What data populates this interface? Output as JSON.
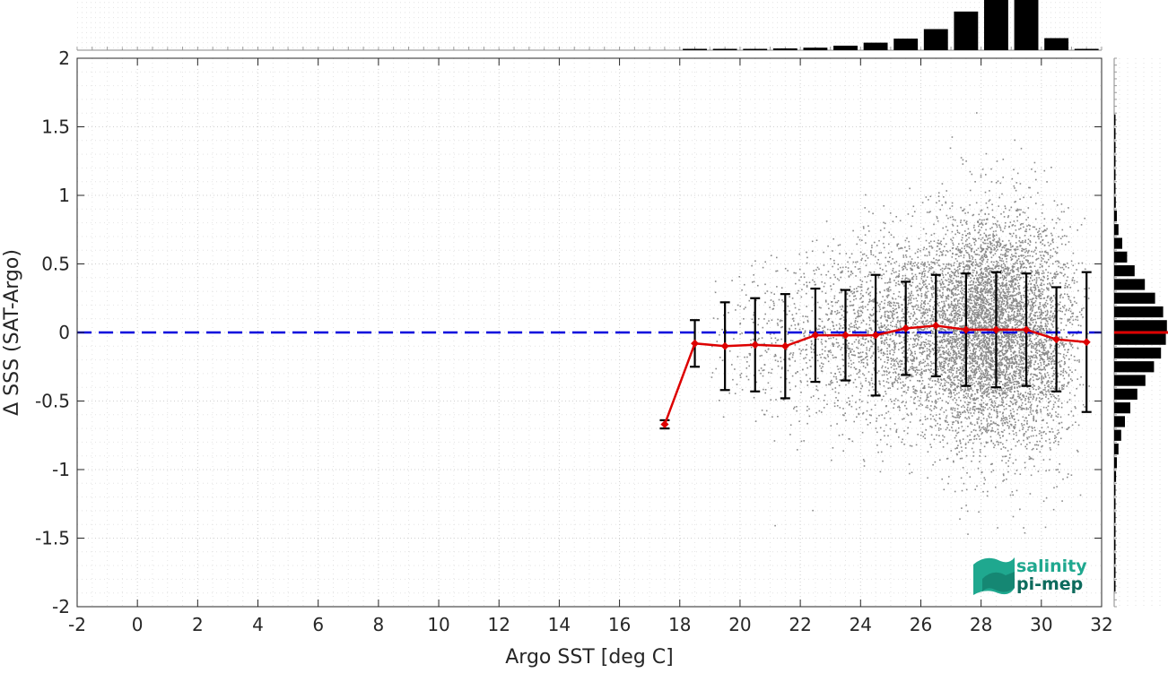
{
  "chart_data": {
    "type": "scatter",
    "title": "",
    "xlabel": "Argo SST [deg C]",
    "ylabel": "Δ SSS (SAT-Argo)",
    "xlim": [
      -2,
      32
    ],
    "ylim": [
      -2,
      2
    ],
    "x_ticks": [
      -2,
      0,
      2,
      4,
      6,
      8,
      10,
      12,
      14,
      16,
      18,
      20,
      22,
      24,
      26,
      28,
      30,
      32
    ],
    "y_ticks": [
      -2,
      -1.5,
      -1,
      -0.5,
      0,
      0.5,
      1,
      1.5,
      2
    ],
    "y_tick_labels": [
      "-2",
      "-1.5",
      "-1",
      "-0.5",
      "0",
      "0.5",
      "1",
      "1.5",
      "2"
    ],
    "grid": true,
    "zero_line": {
      "y": 0,
      "color": "#0000dd",
      "style": "dashed"
    },
    "scatter_color": "#8a8a8a",
    "mean_series": {
      "color": "#dd0000",
      "x": [
        17.5,
        18.5,
        19.5,
        20.5,
        21.5,
        22.5,
        23.5,
        24.5,
        25.5,
        26.5,
        27.5,
        28.5,
        29.5,
        30.5,
        31.5
      ],
      "mean": [
        -0.67,
        -0.08,
        -0.1,
        -0.09,
        -0.1,
        -0.02,
        -0.02,
        -0.02,
        0.03,
        0.05,
        0.02,
        0.02,
        0.02,
        -0.05,
        -0.07
      ],
      "std": [
        0.03,
        0.17,
        0.32,
        0.34,
        0.38,
        0.34,
        0.33,
        0.44,
        0.34,
        0.37,
        0.41,
        0.42,
        0.41,
        0.38,
        0.51
      ]
    },
    "scatter_clusters": [
      {
        "cx": 20.5,
        "cy": -0.05,
        "sx": 1.0,
        "sy": 0.32,
        "n": 140
      },
      {
        "cx": 23.0,
        "cy": -0.02,
        "sx": 1.2,
        "sy": 0.33,
        "n": 600
      },
      {
        "cx": 25.5,
        "cy": 0.02,
        "sx": 1.2,
        "sy": 0.36,
        "n": 1500
      },
      {
        "cx": 28.3,
        "cy": 0.02,
        "sx": 1.1,
        "sy": 0.42,
        "n": 5200
      },
      {
        "cx": 30.2,
        "cy": -0.05,
        "sx": 0.6,
        "sy": 0.4,
        "n": 700
      }
    ],
    "top_histogram": {
      "bin_centers": [
        17.5,
        18.5,
        19.5,
        20.5,
        21.5,
        22.5,
        23.5,
        24.5,
        25.5,
        26.5,
        27.5,
        28.5,
        29.5,
        30.5,
        31.5
      ],
      "relative_counts": [
        0.0,
        0.004,
        0.01,
        0.02,
        0.035,
        0.05,
        0.09,
        0.15,
        0.23,
        0.42,
        0.77,
        1.0,
        1.0,
        0.24,
        0.005
      ]
    },
    "right_histogram": {
      "bin_centers": [
        1.55,
        1.45,
        1.35,
        1.25,
        1.15,
        1.05,
        0.95,
        0.85,
        0.75,
        0.65,
        0.55,
        0.45,
        0.35,
        0.25,
        0.15,
        0.05,
        -0.05,
        -0.15,
        -0.25,
        -0.35,
        -0.45,
        -0.55,
        -0.65,
        -0.75,
        -0.85,
        -0.95,
        -1.05,
        -1.15,
        -1.25,
        -1.35,
        -1.45,
        -1.55,
        -1.65,
        -1.75,
        -1.85
      ],
      "relative_counts": [
        0.004,
        0.005,
        0.007,
        0.01,
        0.015,
        0.02,
        0.03,
        0.05,
        0.08,
        0.15,
        0.24,
        0.38,
        0.57,
        0.76,
        0.91,
        0.98,
        0.96,
        0.87,
        0.74,
        0.58,
        0.43,
        0.3,
        0.2,
        0.13,
        0.08,
        0.05,
        0.035,
        0.025,
        0.018,
        0.012,
        0.009,
        0.007,
        0.005,
        0.004,
        0.003
      ],
      "mean_line": {
        "y": 0,
        "color": "#dd0000"
      }
    },
    "logo": {
      "line1": "salinity",
      "line2": "pi-mep",
      "color": "#1fa88f",
      "color_dark": "#0d6b5d"
    }
  }
}
